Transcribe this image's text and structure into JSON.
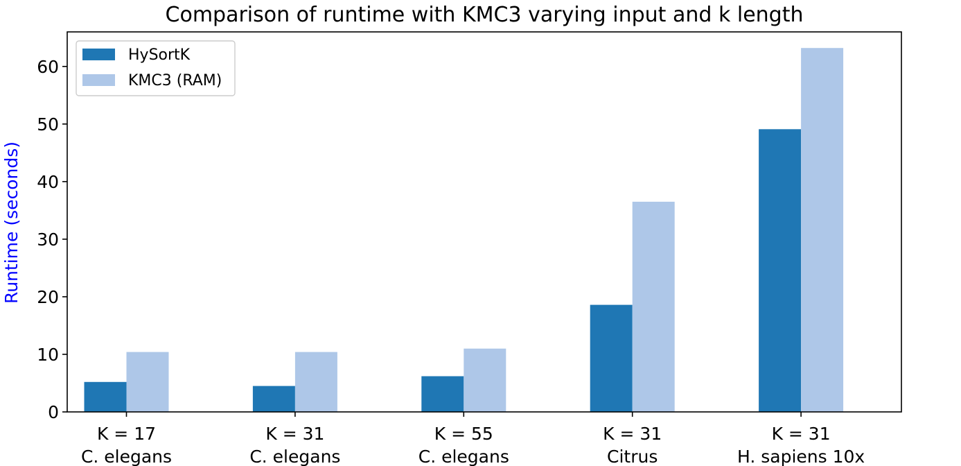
{
  "chart_data": {
    "type": "bar",
    "title": "Comparison of runtime with KMC3 varying input and k length",
    "xlabel": "",
    "ylabel": "Runtime (seconds)",
    "ylabel_color": "#0000ff",
    "ylim": [
      0,
      66
    ],
    "yticks": [
      0,
      10,
      20,
      30,
      40,
      50,
      60
    ],
    "categories": [
      [
        "K = 17",
        "C. elegans"
      ],
      [
        "K = 31",
        "C. elegans"
      ],
      [
        "K = 55",
        "C. elegans"
      ],
      [
        "K = 31",
        "Citrus"
      ],
      [
        "K = 31",
        "H. sapiens 10x"
      ]
    ],
    "series": [
      {
        "name": "HySortK",
        "color": "#1f77b4",
        "values": [
          5.2,
          4.5,
          6.2,
          18.6,
          49.1
        ]
      },
      {
        "name": "KMC3 (RAM)",
        "color": "#aec7e8",
        "values": [
          10.4,
          10.4,
          11.0,
          36.5,
          63.2
        ]
      }
    ],
    "legend_position": "upper-left",
    "grid": false
  }
}
